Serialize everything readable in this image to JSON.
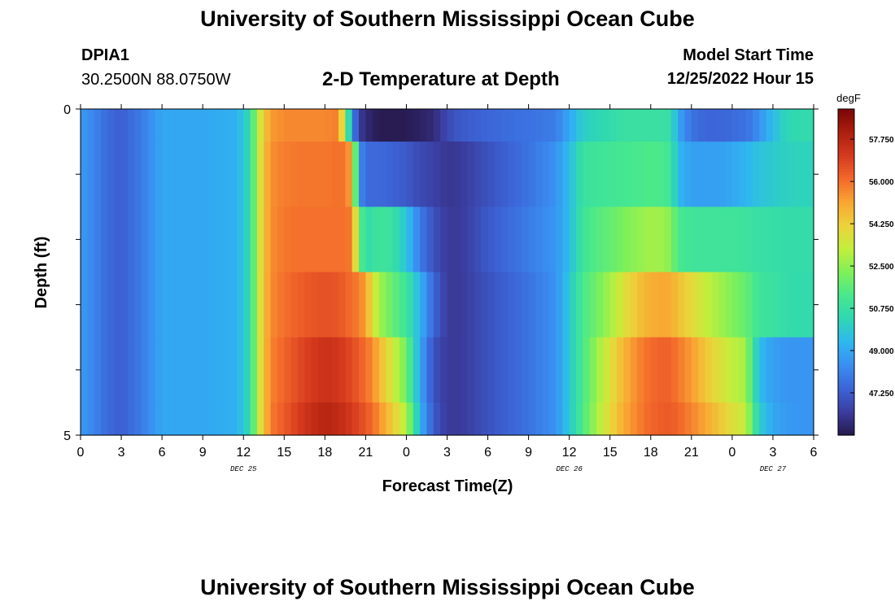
{
  "header": {
    "title": "University of Southern Mississippi Ocean Cube",
    "footer_title": "University of Southern Mississippi Ocean Cube",
    "station": "DPIA1",
    "coordinates": "30.2500N  88.0750W",
    "subtitle": "2-D Temperature at Depth",
    "start_label": "Model Start Time",
    "start_value": "12/25/2022 Hour 15"
  },
  "chart_data": {
    "type": "heatmap",
    "title": "2-D Temperature at Depth",
    "xlabel": "Forecast Time(Z)",
    "ylabel": "Depth (ft)",
    "x_tick_labels": [
      "0",
      "3",
      "6",
      "9",
      "12",
      "15",
      "18",
      "21",
      "0",
      "3",
      "6",
      "9",
      "12",
      "15",
      "18",
      "21",
      "0",
      "3",
      "6"
    ],
    "date_labels": [
      {
        "tick_index": 4,
        "label": "DEC 25"
      },
      {
        "tick_index": 12,
        "label": "DEC 26"
      },
      {
        "tick_index": 17,
        "label": "DEC 27"
      }
    ],
    "y_range": [
      0,
      5
    ],
    "y_tick_labels": [
      {
        "value": 0,
        "label": "0"
      },
      {
        "value": 5,
        "label": "5"
      }
    ],
    "y_minor_ticks": [
      1,
      2,
      3,
      4
    ],
    "x_hours_range": [
      0,
      54
    ],
    "colorbar": {
      "unit": "degF",
      "min": 45.5,
      "max": 59.0,
      "ticks": [
        47.25,
        49.0,
        50.75,
        52.5,
        54.25,
        56.0,
        57.75
      ],
      "tick_labels": [
        "47.250",
        "49.000",
        "50.750",
        "52.500",
        "54.250",
        "56.000",
        "57.750"
      ],
      "colors": [
        "#26184a",
        "#3b3c9e",
        "#3c63d6",
        "#3a8df2",
        "#2fb7f0",
        "#2ed7b4",
        "#47e88e",
        "#7ef05a",
        "#c2ef3c",
        "#ecd33a",
        "#f9a632",
        "#f3692b",
        "#d63a1e",
        "#ad1f0e",
        "#7a0606"
      ]
    },
    "depth_rows": [
      0.25,
      1.25,
      2.25,
      3.25,
      4.25,
      4.75
    ],
    "row_bounds": [
      [
        0,
        0.5
      ],
      [
        0.5,
        1.5
      ],
      [
        1.5,
        2.5
      ],
      [
        2.5,
        3.5
      ],
      [
        3.5,
        4.5
      ],
      [
        4.5,
        5
      ]
    ],
    "time_anchors_hours": [
      0,
      1,
      2,
      3,
      4.5,
      6,
      9,
      11.5,
      12.5,
      13,
      13.5,
      14,
      15,
      16,
      17,
      18,
      19,
      19.5,
      20,
      20.5,
      21,
      21.5,
      22,
      23,
      24,
      25,
      26,
      27,
      28,
      30,
      33,
      35,
      36,
      37,
      38,
      39,
      40,
      41,
      42,
      43,
      43.5,
      44,
      45,
      46,
      47,
      48,
      49,
      49.5,
      50,
      51,
      52,
      53,
      54
    ],
    "temperature_degF": [
      [
        48.7,
        48.2,
        47.6,
        47.3,
        48.0,
        49.0,
        49.0,
        49.2,
        50.5,
        53.0,
        54.3,
        55.3,
        55.6,
        55.6,
        55.6,
        55.6,
        55.8,
        52.5,
        48.5,
        46.5,
        46.0,
        45.8,
        45.6,
        45.6,
        45.6,
        45.8,
        46.0,
        46.8,
        47.2,
        47.5,
        47.8,
        48.0,
        49.0,
        50.0,
        50.3,
        50.5,
        50.8,
        50.8,
        50.8,
        50.8,
        50.6,
        49.0,
        47.8,
        47.5,
        47.5,
        47.6,
        47.8,
        48.0,
        48.5,
        49.5,
        50.3,
        50.5,
        50.5
      ],
      [
        48.7,
        48.2,
        47.6,
        47.3,
        48.0,
        49.0,
        49.0,
        49.2,
        50.5,
        53.0,
        54.5,
        55.5,
        55.8,
        55.9,
        55.9,
        55.9,
        56.0,
        55.9,
        55.0,
        48.5,
        47.6,
        47.6,
        47.6,
        47.4,
        47.2,
        46.8,
        46.6,
        46.3,
        46.4,
        47.0,
        47.8,
        48.5,
        49.5,
        50.8,
        51.0,
        51.1,
        51.2,
        51.3,
        51.4,
        51.3,
        51.0,
        49.4,
        48.8,
        48.8,
        48.8,
        49.0,
        49.3,
        49.5,
        49.7,
        49.9,
        50.1,
        50.2,
        50.2
      ],
      [
        48.7,
        48.2,
        47.6,
        47.3,
        48.0,
        49.0,
        49.0,
        49.2,
        50.5,
        53.0,
        54.5,
        55.5,
        55.9,
        56.0,
        56.0,
        56.0,
        56.0,
        56.0,
        55.8,
        52.0,
        50.5,
        50.8,
        51.0,
        50.8,
        49.7,
        48.0,
        47.0,
        46.4,
        46.4,
        47.2,
        48.0,
        48.6,
        49.5,
        51.0,
        51.5,
        51.8,
        52.2,
        52.5,
        52.8,
        52.7,
        52.3,
        51.3,
        51.0,
        51.0,
        51.0,
        51.0,
        50.9,
        50.8,
        50.7,
        50.7,
        50.6,
        50.6,
        50.6
      ],
      [
        48.7,
        48.2,
        47.6,
        47.3,
        48.0,
        49.0,
        49.0,
        49.2,
        50.5,
        53.0,
        54.5,
        55.6,
        56.0,
        56.3,
        56.5,
        56.6,
        56.5,
        56.3,
        56.0,
        55.8,
        55.2,
        53.8,
        52.8,
        51.8,
        51.0,
        49.3,
        47.5,
        46.4,
        46.4,
        47.0,
        47.8,
        48.5,
        49.8,
        51.3,
        52.0,
        52.8,
        53.7,
        54.5,
        55.0,
        55.1,
        55.0,
        54.6,
        54.0,
        53.3,
        52.8,
        52.3,
        51.8,
        51.4,
        51.0,
        50.8,
        50.6,
        50.5,
        50.5
      ],
      [
        48.7,
        48.2,
        47.6,
        47.3,
        48.0,
        49.0,
        49.0,
        49.2,
        50.5,
        53.0,
        54.5,
        55.7,
        56.2,
        56.7,
        57.1,
        57.4,
        57.2,
        57.0,
        56.7,
        56.4,
        56.0,
        55.6,
        54.8,
        53.5,
        52.0,
        49.0,
        47.0,
        46.4,
        46.4,
        47.0,
        47.8,
        48.5,
        49.8,
        51.3,
        52.6,
        53.8,
        54.8,
        55.6,
        56.1,
        56.3,
        56.2,
        55.9,
        55.3,
        54.5,
        53.8,
        53.2,
        52.8,
        51.0,
        49.5,
        48.8,
        48.6,
        48.6,
        48.6
      ],
      [
        48.7,
        48.2,
        47.6,
        47.3,
        48.0,
        49.0,
        49.0,
        49.2,
        50.5,
        53.0,
        54.5,
        55.8,
        56.4,
        57.0,
        57.5,
        57.8,
        57.6,
        57.4,
        57.1,
        56.8,
        56.5,
        56.1,
        55.5,
        54.3,
        53.0,
        49.3,
        47.2,
        46.4,
        46.4,
        47.0,
        47.8,
        48.5,
        49.8,
        51.4,
        52.8,
        54.0,
        55.0,
        55.7,
        56.2,
        56.4,
        56.4,
        56.2,
        55.7,
        55.1,
        54.5,
        53.8,
        53.3,
        51.5,
        50.0,
        49.0,
        48.7,
        48.6,
        48.6
      ]
    ]
  }
}
